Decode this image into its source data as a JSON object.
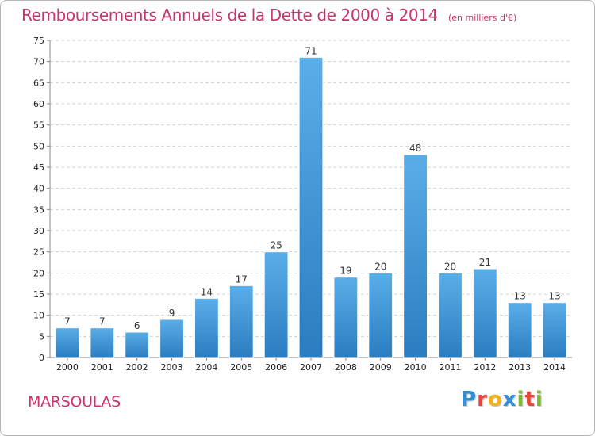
{
  "header": {
    "title": "Remboursements Annuels de la Dette de 2000 à 2014",
    "subtitle": "(en milliers d'€)"
  },
  "footer": {
    "commune": "MARSOULAS",
    "brand": "Proxiti",
    "brand_letters": [
      {
        "ch": "P",
        "color": "#2f8fd8"
      },
      {
        "ch": "r",
        "color": "#e9463a"
      },
      {
        "ch": "o",
        "color": "#f2b21b"
      },
      {
        "ch": "x",
        "color": "#2f8fd8"
      },
      {
        "ch": "i",
        "color": "#7cbb2f"
      },
      {
        "ch": "t",
        "color": "#e9463a"
      },
      {
        "ch": "i",
        "color": "#7cbb2f"
      }
    ]
  },
  "colors": {
    "title": "#c8336b",
    "bar_light": "#5aaee8",
    "bar_dark": "#2a7dc0",
    "grid": "#d0d0d0"
  },
  "chart_data": {
    "type": "bar",
    "categories": [
      "2000",
      "2001",
      "2002",
      "2003",
      "2004",
      "2005",
      "2006",
      "2007",
      "2008",
      "2009",
      "2010",
      "2011",
      "2012",
      "2013",
      "2014"
    ],
    "values": [
      7,
      7,
      6,
      9,
      14,
      17,
      25,
      71,
      19,
      20,
      48,
      20,
      21,
      13,
      13
    ],
    "title": "Remboursements Annuels de la Dette de 2000 à 2014",
    "subtitle": "(en milliers d'€)",
    "ylim": [
      0,
      75
    ],
    "yticks": [
      0,
      5,
      10,
      15,
      20,
      25,
      30,
      35,
      40,
      45,
      50,
      55,
      60,
      65,
      70,
      75
    ],
    "grid": true,
    "data_labels": true
  }
}
